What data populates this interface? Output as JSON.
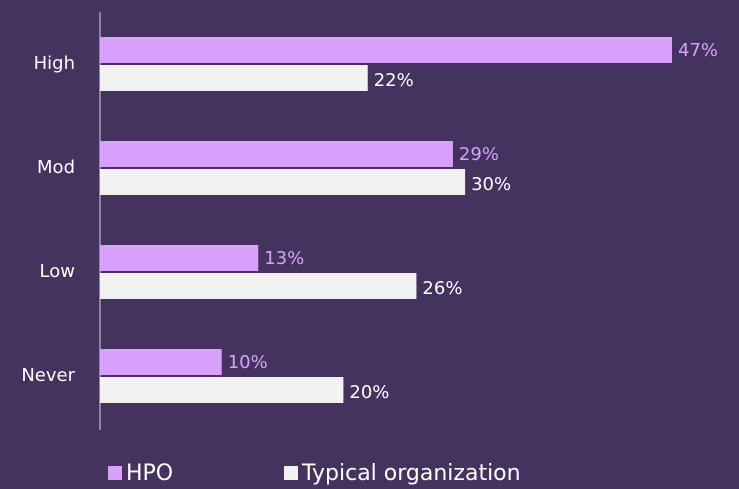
{
  "chart_data": {
    "type": "bar",
    "orientation": "horizontal",
    "categories": [
      "High",
      "Mod",
      "Low",
      "Never"
    ],
    "series": [
      {
        "name": "HPO",
        "color": "#d9a0fb",
        "values": [
          47,
          29,
          13,
          10
        ],
        "value_labels": [
          "47%",
          "29%",
          "13%",
          "10%"
        ]
      },
      {
        "name": "Typical organization",
        "color": "#f2f2f2",
        "values": [
          22,
          30,
          26,
          20
        ],
        "value_labels": [
          "22%",
          "30%",
          "26%",
          "20%"
        ]
      }
    ],
    "legend": "bottom"
  }
}
